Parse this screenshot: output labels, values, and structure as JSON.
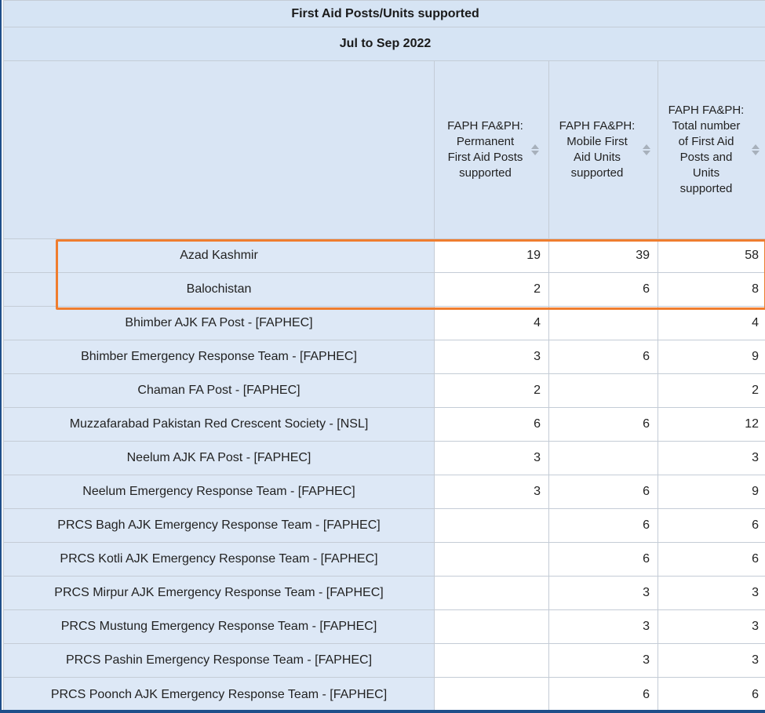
{
  "table": {
    "title": "First Aid Posts/Units supported",
    "period": "Jul to Sep 2022",
    "columns": [
      {
        "label": "FAPH FA&PH: Permanent First Aid Posts supported",
        "sort_icon": "sort-icon"
      },
      {
        "label": "FAPH FA&PH: Mobile First Aid Units supported",
        "sort_icon": "sort-icon"
      },
      {
        "label": "FAPH FA&PH: Total number of First Aid Posts and Units supported",
        "sort_icon": "sort-icon"
      }
    ],
    "rows": [
      {
        "label": "Azad Kashmir",
        "values": [
          "19",
          "39",
          "58"
        ],
        "highlighted": true
      },
      {
        "label": "Balochistan",
        "values": [
          "2",
          "6",
          "8"
        ],
        "highlighted": true
      },
      {
        "label": "Bhimber AJK FA Post - [FAPHEC]",
        "values": [
          "4",
          "",
          "4"
        ]
      },
      {
        "label": "Bhimber Emergency Response Team - [FAPHEC]",
        "values": [
          "3",
          "6",
          "9"
        ]
      },
      {
        "label": "Chaman FA Post - [FAPHEC]",
        "values": [
          "2",
          "",
          "2"
        ]
      },
      {
        "label": "Muzzafarabad Pakistan Red Crescent Society - [NSL]",
        "values": [
          "6",
          "6",
          "12"
        ]
      },
      {
        "label": "Neelum AJK FA Post - [FAPHEC]",
        "values": [
          "3",
          "",
          "3"
        ]
      },
      {
        "label": "Neelum Emergency Response Team - [FAPHEC]",
        "values": [
          "3",
          "6",
          "9"
        ]
      },
      {
        "label": "PRCS Bagh AJK Emergency Response Team - [FAPHEC]",
        "values": [
          "",
          "6",
          "6"
        ]
      },
      {
        "label": "PRCS Kotli AJK Emergency Response Team - [FAPHEC]",
        "values": [
          "",
          "6",
          "6"
        ]
      },
      {
        "label": "PRCS Mirpur AJK Emergency Response Team - [FAPHEC]",
        "values": [
          "",
          "3",
          "3"
        ]
      },
      {
        "label": "PRCS Mustung Emergency Response Team - [FAPHEC]",
        "values": [
          "",
          "3",
          "3"
        ]
      },
      {
        "label": "PRCS Pashin Emergency Response Team - [FAPHEC]",
        "values": [
          "",
          "3",
          "3"
        ]
      },
      {
        "label": "PRCS Poonch AJK Emergency Response Team - [FAPHEC]",
        "values": [
          "",
          "6",
          "6"
        ]
      }
    ]
  },
  "colors": {
    "header_bg": "#d6e4f4",
    "row_label_bg": "#dde8f6",
    "highlight_border": "#ef7d2f",
    "frame_border": "#1e4f8a"
  }
}
